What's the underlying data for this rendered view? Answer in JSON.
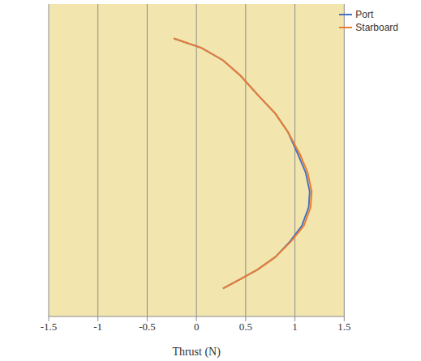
{
  "chart_data": {
    "type": "line",
    "x_label": "Thrust (N)",
    "xlim": [
      -1.5,
      1.5
    ],
    "xticks": [
      -1.5,
      -1,
      -0.5,
      0,
      0.5,
      1,
      1.5
    ],
    "ylim": [
      0,
      100
    ],
    "yticks": [],
    "tick_labels": "x",
    "grid": true,
    "legend": "upper right",
    "series": [
      {
        "name": "Port",
        "color": "#4472c4",
        "x": [
          -0.23,
          0.05,
          0.27,
          0.45,
          0.62,
          0.8,
          0.93,
          1.03,
          1.11,
          1.15,
          1.14,
          1.07,
          0.95,
          0.8,
          0.62,
          0.45,
          0.27
        ],
        "y": [
          89,
          86,
          82,
          77,
          71,
          65,
          59,
          52,
          46,
          40,
          35,
          29,
          24,
          19,
          15,
          12,
          9
        ]
      },
      {
        "name": "Starboard",
        "color": "#ed7d31",
        "x": [
          -0.23,
          0.05,
          0.27,
          0.45,
          0.62,
          0.8,
          0.93,
          1.05,
          1.13,
          1.17,
          1.16,
          1.09,
          0.96,
          0.8,
          0.62,
          0.45,
          0.27
        ],
        "y": [
          89,
          86,
          82,
          77,
          71,
          65,
          59,
          52,
          46,
          40,
          35,
          29,
          24,
          19,
          15,
          12,
          9
        ]
      }
    ]
  }
}
